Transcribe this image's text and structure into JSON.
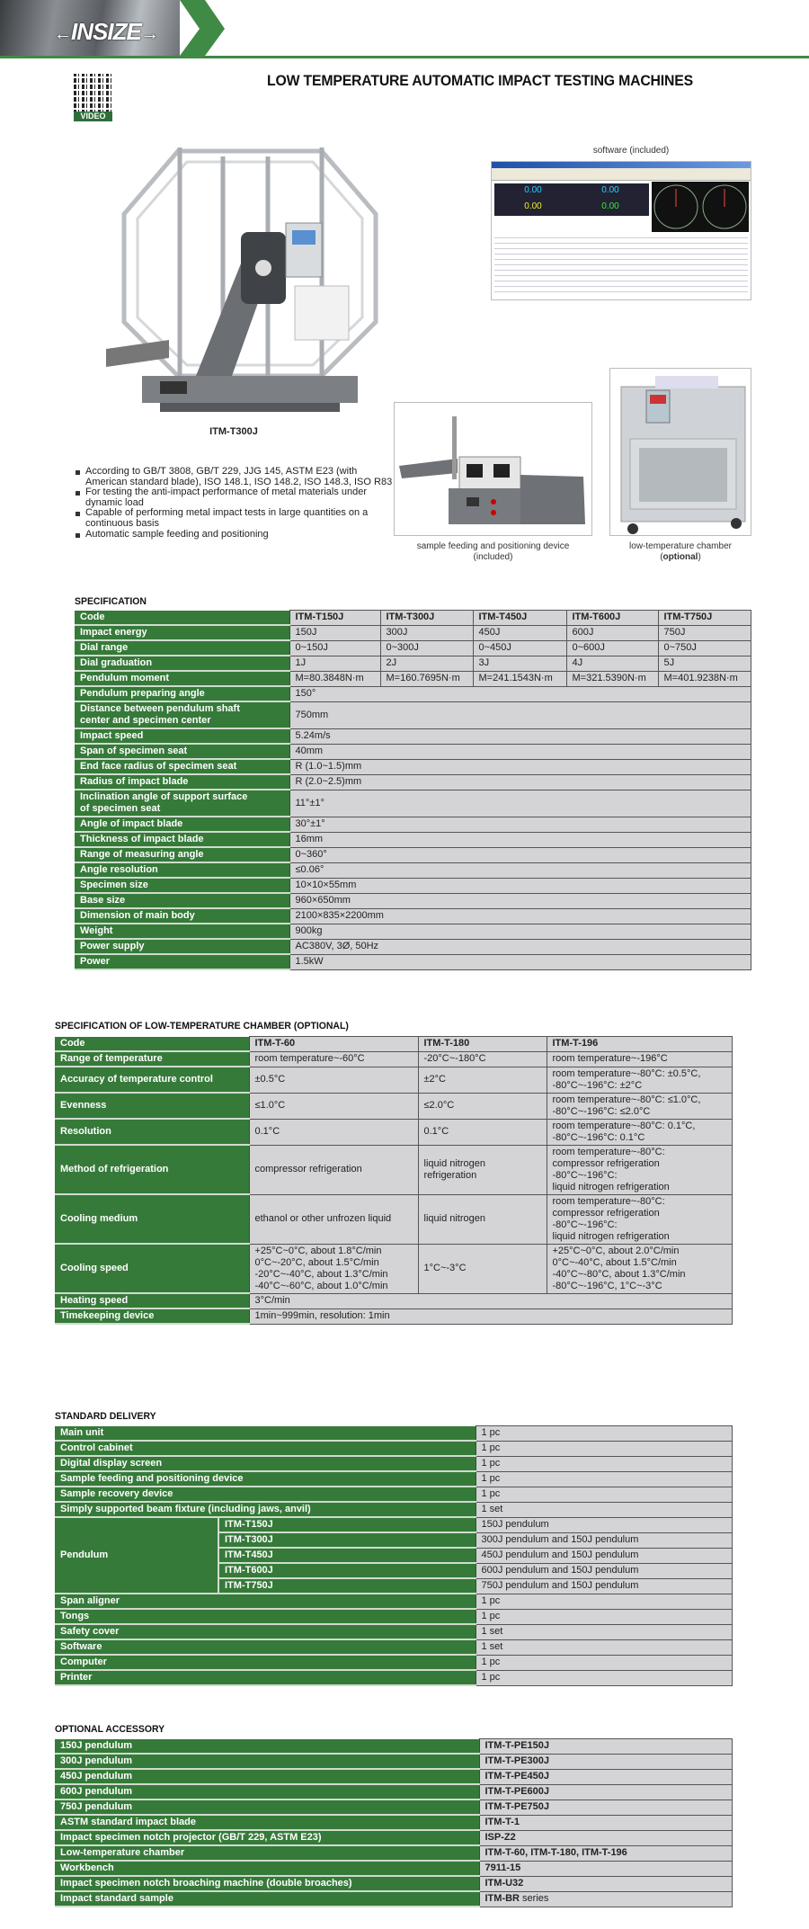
{
  "brand": {
    "logo_text": "INSIZE"
  },
  "qr": {
    "label": "VIDEO"
  },
  "title": "LOW TEMPERATURE AUTOMATIC IMPACT TESTING MACHINES",
  "colors": {
    "green": "#367a39",
    "cell_gray": "#d4d4d6",
    "border": "#555555"
  },
  "product": {
    "model_caption": "ITM-T300J",
    "software_caption": "software (included)",
    "software_readouts": [
      "0.00",
      "0.00",
      "0.00",
      "0.00"
    ],
    "feeder_caption_1": "sample feeding and positioning device",
    "feeder_caption_2": "(included)",
    "chamber_caption_1": "low-temperature chamber",
    "chamber_caption_2": "optional"
  },
  "bullets": [
    "According to GB/T 3808, GB/T 229, JJG 145, ASTM E23 (with American standard blade), ISO 148.1, ISO 148.2, ISO 148.3, ISO R83",
    "For testing the anti-impact performance of metal materials under dynamic load",
    "Capable of performing metal impact tests in large quantities on a continuous basis",
    "Automatic sample feeding and positioning"
  ],
  "spec": {
    "title": "SPECIFICATION",
    "header": {
      "label": "Code",
      "models": [
        "ITM-T150J",
        "ITM-T300J",
        "ITM-T450J",
        "ITM-T600J",
        "ITM-T750J"
      ]
    },
    "rows": [
      {
        "label": "Impact energy",
        "values": [
          "150J",
          "300J",
          "450J",
          "600J",
          "750J"
        ]
      },
      {
        "label": "Dial range",
        "values": [
          "0~150J",
          "0~300J",
          "0~450J",
          "0~600J",
          "0~750J"
        ]
      },
      {
        "label": "Dial graduation",
        "values": [
          "1J",
          "2J",
          "3J",
          "4J",
          "5J"
        ]
      },
      {
        "label": "Pendulum moment",
        "values": [
          "M=80.3848N·m",
          "M=160.7695N·m",
          "M=241.1543N·m",
          "M=321.5390N·m",
          "M=401.9238N·m"
        ]
      },
      {
        "label": "Pendulum preparing angle",
        "values": [
          "150°"
        ]
      },
      {
        "label": "Distance between pendulum shaft\ncenter and specimen center",
        "values": [
          "750mm"
        ]
      },
      {
        "label": "Impact speed",
        "values": [
          "5.24m/s"
        ]
      },
      {
        "label": "Span of specimen seat",
        "values": [
          "40mm"
        ]
      },
      {
        "label": "End face radius of specimen seat",
        "values": [
          "R (1.0~1.5)mm"
        ]
      },
      {
        "label": "Radius of impact blade",
        "values": [
          "R (2.0~2.5)mm"
        ]
      },
      {
        "label": "Inclination angle of support surface\nof specimen seat",
        "values": [
          "11°±1°"
        ]
      },
      {
        "label": "Angle of impact blade",
        "values": [
          "30°±1°"
        ]
      },
      {
        "label": "Thickness of impact blade",
        "values": [
          "16mm"
        ]
      },
      {
        "label": "Range of measuring angle",
        "values": [
          "0~360°"
        ]
      },
      {
        "label": "Angle resolution",
        "values": [
          "≤0.06°"
        ]
      },
      {
        "label": "Specimen size",
        "values": [
          "10×10×55mm"
        ]
      },
      {
        "label": "Base size",
        "values": [
          "960×650mm"
        ]
      },
      {
        "label": "Dimension of main body",
        "values": [
          "2100×835×2200mm"
        ]
      },
      {
        "label": "Weight",
        "values": [
          "900kg"
        ]
      },
      {
        "label": "Power supply",
        "values": [
          "AC380V, 3Ø, 50Hz"
        ]
      },
      {
        "label": "Power",
        "values": [
          "1.5kW"
        ]
      }
    ]
  },
  "chamber": {
    "title": "SPECIFICATION OF LOW-TEMPERATURE CHAMBER (OPTIONAL)",
    "header": {
      "label": "Code",
      "models": [
        "ITM-T-60",
        "ITM-T-180",
        "ITM-T-196"
      ]
    },
    "rows": [
      {
        "label": "Range of temperature",
        "values": [
          "room temperature~-60°C",
          "-20°C~-180°C",
          "room temperature~-196°C"
        ]
      },
      {
        "label": "Accuracy of temperature control",
        "values": [
          "±0.5°C",
          "±2°C",
          "room temperature~-80°C: ±0.5°C,\n-80°C~-196°C: ±2°C"
        ]
      },
      {
        "label": "Evenness",
        "values": [
          "≤1.0°C",
          "≤2.0°C",
          "room temperature~-80°C: ≤1.0°C,\n-80°C~-196°C: ≤2.0°C"
        ]
      },
      {
        "label": "Resolution",
        "values": [
          "0.1°C",
          "0.1°C",
          "room temperature~-80°C: 0.1°C,\n-80°C~-196°C: 0.1°C"
        ]
      },
      {
        "label": "Method of refrigeration",
        "values": [
          "compressor refrigeration",
          "liquid nitrogen\nrefrigeration",
          "room temperature~-80°C:\ncompressor refrigeration\n-80°C~-196°C:\nliquid nitrogen refrigeration"
        ]
      },
      {
        "label": "Cooling medium",
        "values": [
          "ethanol or other unfrozen liquid",
          "liquid nitrogen",
          "room temperature~-80°C:\ncompressor refrigeration\n-80°C~-196°C:\nliquid nitrogen refrigeration"
        ]
      },
      {
        "label": "Cooling speed",
        "values": [
          "+25°C~0°C, about 1.8°C/min\n0°C~-20°C, about 1.5°C/min\n-20°C~-40°C, about 1.3°C/min\n-40°C~-60°C, about 1.0°C/min",
          "1°C~-3°C",
          "+25°C~0°C, about 2.0°C/min\n0°C~-40°C, about 1.5°C/min\n-40°C~-80°C, about 1.3°C/min\n-80°C~-196°C, 1°C~-3°C"
        ]
      },
      {
        "label": "Heating speed",
        "values": [
          "3°C/min"
        ]
      },
      {
        "label": "Timekeeping device",
        "values": [
          "1min~999min, resolution: 1min"
        ]
      }
    ]
  },
  "delivery": {
    "title": "STANDARD DELIVERY",
    "rows_before": [
      {
        "label": "Main unit",
        "value": "1 pc"
      },
      {
        "label": "Control cabinet",
        "value": "1 pc"
      },
      {
        "label": "Digital display screen",
        "value": "1 pc"
      },
      {
        "label": "Sample feeding and positioning device",
        "value": "1 pc"
      },
      {
        "label": "Sample recovery device",
        "value": "1 pc"
      },
      {
        "label": "Simply supported beam fixture (including jaws, anvil)",
        "value": "1 set"
      }
    ],
    "pendulum": {
      "label": "Pendulum",
      "items": [
        {
          "model": "ITM-T150J",
          "value": "150J pendulum"
        },
        {
          "model": "ITM-T300J",
          "value": "300J pendulum and 150J pendulum"
        },
        {
          "model": "ITM-T450J",
          "value": "450J pendulum and 150J pendulum"
        },
        {
          "model": "ITM-T600J",
          "value": "600J pendulum and 150J pendulum"
        },
        {
          "model": "ITM-T750J",
          "value": "750J pendulum and 150J pendulum"
        }
      ]
    },
    "rows_after": [
      {
        "label": "Span aligner",
        "value": "1 pc"
      },
      {
        "label": "Tongs",
        "value": "1 pc"
      },
      {
        "label": "Safety cover",
        "value": "1 set"
      },
      {
        "label": "Software",
        "value": "1 set"
      },
      {
        "label": "Computer",
        "value": "1 pc"
      },
      {
        "label": "Printer",
        "value": "1 pc"
      }
    ]
  },
  "accessory": {
    "title": "OPTIONAL ACCESSORY",
    "rows": [
      {
        "label": "150J pendulum",
        "value": "ITM-T-PE150J"
      },
      {
        "label": "300J pendulum",
        "value": "ITM-T-PE300J"
      },
      {
        "label": "450J pendulum",
        "value": "ITM-T-PE450J"
      },
      {
        "label": "600J pendulum",
        "value": "ITM-T-PE600J"
      },
      {
        "label": "750J pendulum",
        "value": "ITM-T-PE750J"
      },
      {
        "label": "ASTM standard impact blade",
        "value": "ITM-T-1"
      },
      {
        "label": "Impact specimen notch projector (GB/T 229, ASTM E23)",
        "value": "ISP-Z2"
      },
      {
        "label": "Low-temperature chamber",
        "value": "ITM-T-60, ITM-T-180, ITM-T-196"
      },
      {
        "label": "Workbench",
        "value": "7911-15"
      },
      {
        "label": "Impact specimen notch broaching machine (double broaches)",
        "value": "ITM-U32"
      },
      {
        "label": "Impact standard sample",
        "value": "ITM-BR",
        "suffix": " series"
      }
    ]
  }
}
